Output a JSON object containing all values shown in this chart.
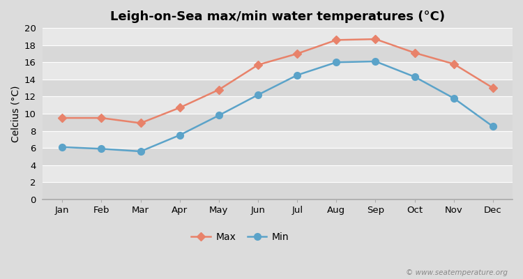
{
  "title": "Leigh-on-Sea max/min water temperatures (°C)",
  "ylabel": "Celcius (°C)",
  "months": [
    "Jan",
    "Feb",
    "Mar",
    "Apr",
    "May",
    "Jun",
    "Jul",
    "Aug",
    "Sep",
    "Oct",
    "Nov",
    "Dec"
  ],
  "max_temps": [
    9.5,
    9.5,
    8.9,
    10.7,
    12.8,
    15.7,
    17.0,
    18.6,
    18.7,
    17.1,
    15.8,
    13.0
  ],
  "min_temps": [
    6.1,
    5.9,
    5.6,
    7.5,
    9.8,
    12.2,
    14.5,
    16.0,
    16.1,
    14.3,
    11.8,
    8.5
  ],
  "max_color": "#e8826a",
  "min_color": "#5ba3c9",
  "figure_bg": "#dcdcdc",
  "plot_bg_light": "#e8e8e8",
  "plot_bg_dark": "#d8d8d8",
  "grid_color": "#ffffff",
  "ylim": [
    0,
    20
  ],
  "yticks": [
    0,
    2,
    4,
    6,
    8,
    10,
    12,
    14,
    16,
    18,
    20
  ],
  "title_fontsize": 13,
  "axis_label_fontsize": 10,
  "tick_fontsize": 9.5,
  "legend_labels": [
    "Max",
    "Min"
  ],
  "watermark": "© www.seatemperature.org",
  "max_marker": "D",
  "min_marker": "o",
  "max_markersize": 6,
  "min_markersize": 7,
  "linewidth": 1.8
}
